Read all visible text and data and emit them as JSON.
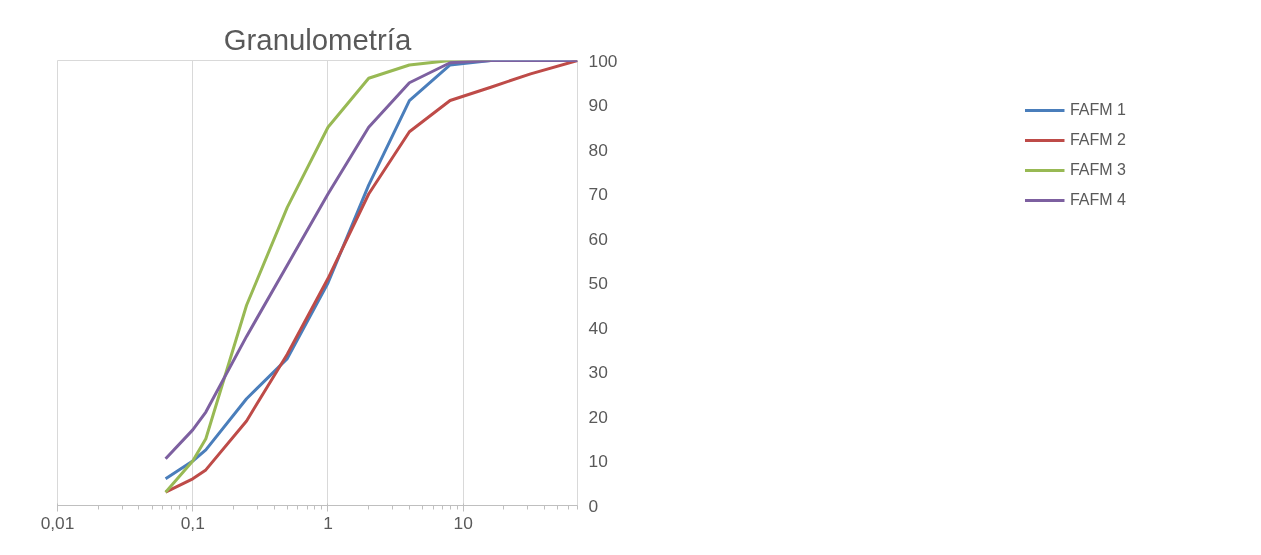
{
  "chart_data": {
    "type": "line",
    "title": "Granulometría",
    "log": "x",
    "grid": "x",
    "legend": "top right",
    "line_style": "solid",
    "marker": "none",
    "x": [
      0.063,
      0.1,
      0.125,
      0.25,
      0.5,
      1,
      2,
      4,
      8,
      16,
      31.5,
      70
    ],
    "xlim": [
      0.01,
      70
    ],
    "xticks": [
      {
        "value": 0.01,
        "label": "0,01"
      },
      {
        "value": 0.1,
        "label": "0,1"
      },
      1,
      10
    ],
    "ylim": [
      0,
      100
    ],
    "yticks": [
      0,
      10,
      20,
      30,
      40,
      50,
      60,
      70,
      80,
      90,
      100
    ],
    "series": [
      {
        "name": "FAFM 1",
        "color": "#4a7ebb",
        "values": [
          6,
          10,
          12.5,
          24,
          33,
          50,
          72,
          91,
          99,
          100,
          100,
          100
        ]
      },
      {
        "name": "FAFM 2",
        "color": "#be4b48",
        "values": [
          3,
          6,
          8,
          19,
          34,
          51,
          70,
          84,
          91,
          94,
          97,
          100
        ]
      },
      {
        "name": "FAFM 3",
        "color": "#98b954",
        "values": [
          3,
          10,
          15,
          45,
          67,
          85,
          96,
          99,
          100,
          100,
          null,
          null
        ]
      },
      {
        "name": "FAFM 4",
        "color": "#7d60a0",
        "values": [
          10.5,
          17,
          21,
          38,
          54,
          70,
          85,
          95,
          99.5,
          100,
          100,
          100
        ]
      }
    ]
  }
}
